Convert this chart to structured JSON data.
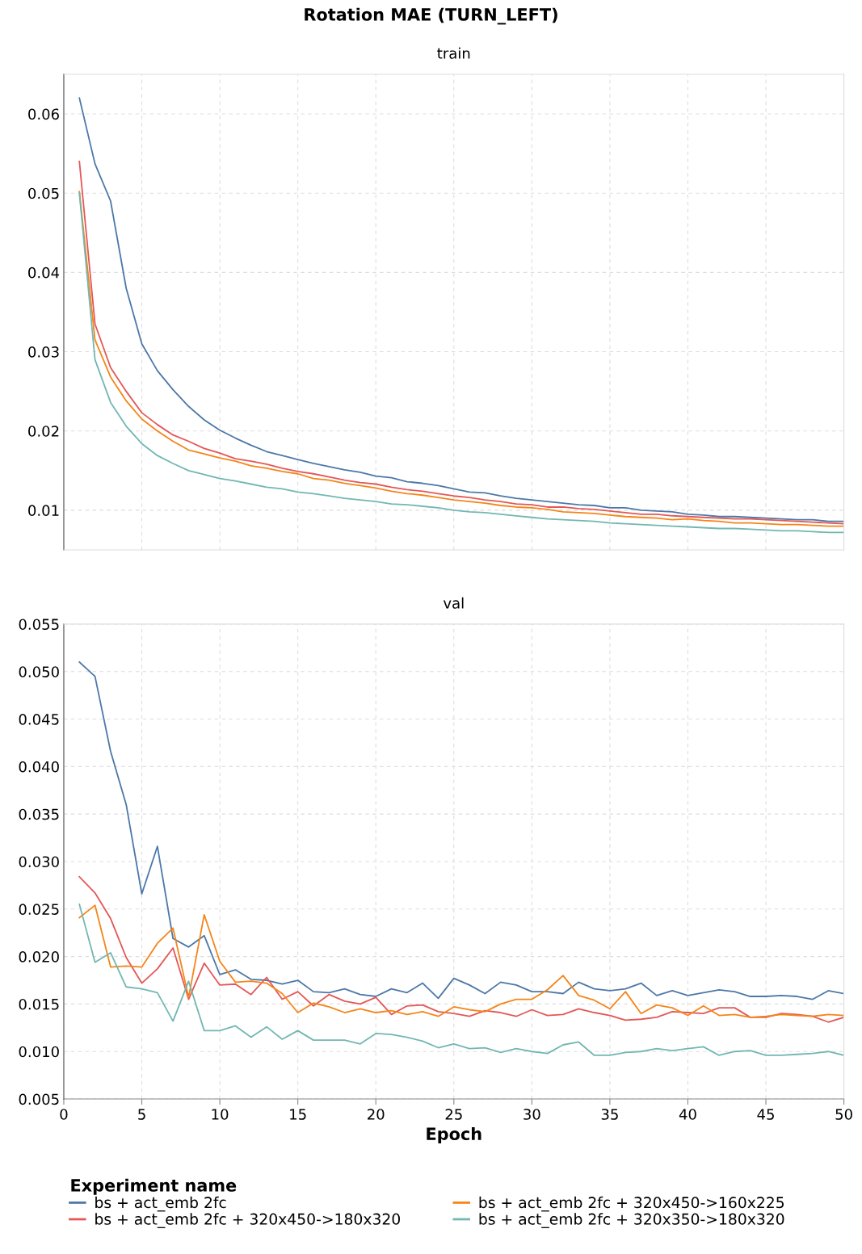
{
  "chart_data": [
    {
      "type": "line",
      "title": "Rotation MAE (TURN_LEFT)",
      "subtitle": "train",
      "x": [
        1,
        2,
        3,
        4,
        5,
        6,
        7,
        8,
        9,
        10,
        11,
        12,
        13,
        14,
        15,
        16,
        17,
        18,
        19,
        20,
        21,
        22,
        23,
        24,
        25,
        26,
        27,
        28,
        29,
        30,
        31,
        32,
        33,
        34,
        35,
        36,
        37,
        38,
        39,
        40,
        41,
        42,
        43,
        44,
        45,
        46,
        47,
        48,
        49,
        50
      ],
      "series": [
        {
          "color": "#4c78a8",
          "values": [
            0.062,
            0.0537,
            0.049,
            0.038,
            0.031,
            0.0276,
            0.0252,
            0.0231,
            0.0214,
            0.0201,
            0.0191,
            0.0182,
            0.0174,
            0.0169,
            0.0164,
            0.0159,
            0.0155,
            0.0151,
            0.0148,
            0.0143,
            0.0141,
            0.0136,
            0.0134,
            0.0131,
            0.0127,
            0.0123,
            0.0122,
            0.0118,
            0.0115,
            0.0113,
            0.0111,
            0.0109,
            0.0107,
            0.0106,
            0.0103,
            0.0103,
            0.01,
            0.0099,
            0.0098,
            0.0095,
            0.0094,
            0.0092,
            0.0092,
            0.0091,
            0.009,
            0.0089,
            0.0088,
            0.0088,
            0.0086,
            0.0086
          ]
        },
        {
          "color": "#e45756",
          "values": [
            0.054,
            0.0335,
            0.028,
            0.025,
            0.0223,
            0.0208,
            0.0195,
            0.0187,
            0.0178,
            0.0172,
            0.0165,
            0.0162,
            0.0158,
            0.0153,
            0.0149,
            0.0146,
            0.0142,
            0.0138,
            0.0135,
            0.0133,
            0.0129,
            0.0126,
            0.0124,
            0.0121,
            0.0118,
            0.0116,
            0.0113,
            0.0111,
            0.0108,
            0.0107,
            0.0104,
            0.0104,
            0.0102,
            0.0101,
            0.0099,
            0.0097,
            0.0095,
            0.0095,
            0.0093,
            0.0092,
            0.0091,
            0.009,
            0.0089,
            0.0089,
            0.0088,
            0.0087,
            0.0086,
            0.0085,
            0.0084,
            0.0083
          ]
        },
        {
          "color": "#f58518",
          "values": [
            0.0502,
            0.0315,
            0.0268,
            0.0238,
            0.0215,
            0.02,
            0.0187,
            0.0176,
            0.0171,
            0.0166,
            0.0162,
            0.0156,
            0.0153,
            0.0149,
            0.0146,
            0.014,
            0.0138,
            0.0134,
            0.0131,
            0.0128,
            0.0124,
            0.0121,
            0.0119,
            0.0116,
            0.0113,
            0.0111,
            0.0109,
            0.0106,
            0.0104,
            0.0103,
            0.0101,
            0.0098,
            0.0097,
            0.0096,
            0.0094,
            0.0092,
            0.0091,
            0.009,
            0.0088,
            0.0089,
            0.0087,
            0.0086,
            0.0084,
            0.0084,
            0.0083,
            0.0082,
            0.0082,
            0.0081,
            0.008,
            0.008
          ]
        },
        {
          "color": "#72b7b2",
          "values": [
            0.05,
            0.029,
            0.0236,
            0.0206,
            0.0184,
            0.0169,
            0.0159,
            0.015,
            0.0145,
            0.014,
            0.0137,
            0.0133,
            0.0129,
            0.0127,
            0.0123,
            0.0121,
            0.0118,
            0.0115,
            0.0113,
            0.0111,
            0.0108,
            0.0107,
            0.0105,
            0.0103,
            0.01,
            0.0098,
            0.0097,
            0.0095,
            0.0093,
            0.0091,
            0.0089,
            0.0088,
            0.0087,
            0.0086,
            0.0084,
            0.0083,
            0.0082,
            0.0081,
            0.008,
            0.0079,
            0.0078,
            0.0077,
            0.0077,
            0.0076,
            0.0075,
            0.0074,
            0.0074,
            0.0073,
            0.0072,
            0.0072
          ]
        }
      ],
      "xlim": [
        0,
        50
      ],
      "xticks": [
        0,
        5,
        10,
        15,
        20,
        25,
        30,
        35,
        40,
        45,
        50
      ],
      "ylim": [
        0.005,
        0.065
      ],
      "yticks": [
        0.01,
        0.02,
        0.03,
        0.04,
        0.05,
        0.06
      ],
      "tick_labels": "y",
      "grid": true,
      "line_style": "solid"
    },
    {
      "type": "line",
      "title": "val",
      "xlabel": "Epoch",
      "legend_title": "Experiment name",
      "x": [
        1,
        2,
        3,
        4,
        5,
        6,
        7,
        8,
        9,
        10,
        11,
        12,
        13,
        14,
        15,
        16,
        17,
        18,
        19,
        20,
        21,
        22,
        23,
        24,
        25,
        26,
        27,
        28,
        29,
        30,
        31,
        32,
        33,
        34,
        35,
        36,
        37,
        38,
        39,
        40,
        41,
        42,
        43,
        44,
        45,
        46,
        47,
        48,
        49,
        50
      ],
      "series": [
        {
          "name": "bs + act_emb 2fc",
          "color": "#4c78a8",
          "values": [
            0.051,
            0.0495,
            0.0416,
            0.036,
            0.0266,
            0.0316,
            0.0219,
            0.021,
            0.0222,
            0.0181,
            0.0186,
            0.0176,
            0.0175,
            0.0171,
            0.0175,
            0.0163,
            0.0162,
            0.0166,
            0.016,
            0.0158,
            0.0166,
            0.0162,
            0.0172,
            0.0156,
            0.0177,
            0.017,
            0.0161,
            0.0173,
            0.017,
            0.0163,
            0.0163,
            0.0161,
            0.0173,
            0.0166,
            0.0164,
            0.0166,
            0.0172,
            0.0159,
            0.0164,
            0.0159,
            0.0162,
            0.0165,
            0.0163,
            0.0158,
            0.0158,
            0.0159,
            0.0158,
            0.0155,
            0.0164,
            0.0161
          ]
        },
        {
          "name": "bs + act_emb 2fc + 320x450->180x320",
          "color": "#e45756",
          "values": [
            0.0284,
            0.0267,
            0.024,
            0.0199,
            0.0172,
            0.0187,
            0.0209,
            0.0155,
            0.0193,
            0.017,
            0.0171,
            0.016,
            0.0178,
            0.0155,
            0.0163,
            0.0148,
            0.016,
            0.0153,
            0.015,
            0.0157,
            0.0139,
            0.0148,
            0.0149,
            0.0142,
            0.014,
            0.0137,
            0.0143,
            0.0141,
            0.0137,
            0.0144,
            0.0138,
            0.0139,
            0.0145,
            0.0141,
            0.0138,
            0.0133,
            0.0134,
            0.0136,
            0.0142,
            0.0141,
            0.014,
            0.0146,
            0.0146,
            0.0136,
            0.0136,
            0.014,
            0.0139,
            0.0137,
            0.0131,
            0.0136
          ]
        },
        {
          "name": "bs + act_emb 2fc + 320x450->160x225",
          "color": "#f58518",
          "values": [
            0.0241,
            0.0254,
            0.0189,
            0.019,
            0.0189,
            0.0214,
            0.023,
            0.0157,
            0.0244,
            0.0195,
            0.0173,
            0.0174,
            0.0172,
            0.0161,
            0.0141,
            0.0151,
            0.0147,
            0.0141,
            0.0145,
            0.0141,
            0.0143,
            0.0139,
            0.0142,
            0.0137,
            0.0147,
            0.0144,
            0.0142,
            0.015,
            0.0155,
            0.0155,
            0.0165,
            0.018,
            0.0159,
            0.0154,
            0.0145,
            0.0163,
            0.014,
            0.0149,
            0.0146,
            0.0138,
            0.0148,
            0.0138,
            0.0139,
            0.0136,
            0.0137,
            0.0139,
            0.0138,
            0.0137,
            0.0139,
            0.0138
          ]
        },
        {
          "name": "bs + act_emb 2fc + 320x350->180x320",
          "color": "#72b7b2",
          "values": [
            0.0255,
            0.0194,
            0.0204,
            0.0168,
            0.0166,
            0.0162,
            0.0132,
            0.0174,
            0.0122,
            0.0122,
            0.0127,
            0.0115,
            0.0126,
            0.0113,
            0.0122,
            0.0112,
            0.0112,
            0.0112,
            0.0108,
            0.0119,
            0.0118,
            0.0115,
            0.0111,
            0.0104,
            0.0108,
            0.0103,
            0.0104,
            0.0099,
            0.0103,
            0.01,
            0.0098,
            0.0107,
            0.011,
            0.0096,
            0.0096,
            0.0099,
            0.01,
            0.0103,
            0.0101,
            0.0103,
            0.0105,
            0.0096,
            0.01,
            0.0101,
            0.0096,
            0.0096,
            0.0097,
            0.0098,
            0.01,
            0.0096
          ]
        }
      ],
      "xlim": [
        0,
        50
      ],
      "xticks": [
        0,
        5,
        10,
        15,
        20,
        25,
        30,
        35,
        40,
        45,
        50
      ],
      "ylim": [
        0.005,
        0.055
      ],
      "yticks": [
        {
          "value": 0.005,
          "label": "0.005"
        },
        {
          "value": 0.01,
          "label": "0.010"
        },
        {
          "value": 0.015,
          "label": "0.015"
        },
        {
          "value": 0.02,
          "label": "0.020"
        },
        {
          "value": 0.025,
          "label": "0.025"
        },
        {
          "value": 0.03,
          "label": "0.030"
        },
        {
          "value": 0.035,
          "label": "0.035"
        },
        {
          "value": 0.04,
          "label": "0.040"
        },
        {
          "value": 0.045,
          "label": "0.045"
        },
        {
          "value": 0.05,
          "label": "0.050"
        },
        {
          "value": 0.055,
          "label": "0.055"
        }
      ],
      "grid": true,
      "legend": "bottom",
      "line_style": "solid"
    }
  ]
}
